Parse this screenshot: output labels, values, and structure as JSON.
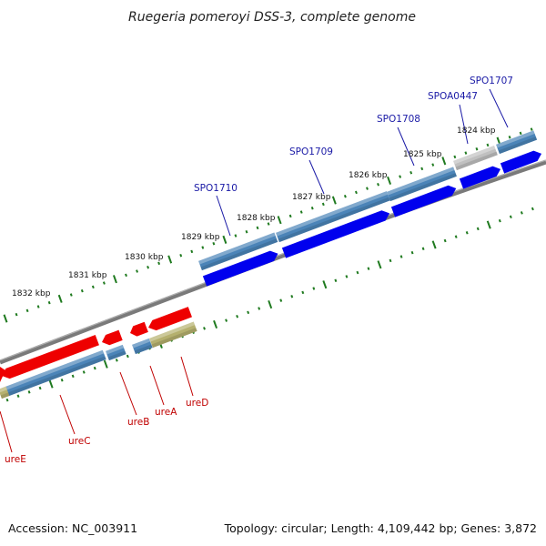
{
  "title": "Ruegeria pomeroyi DSS-3, complete genome",
  "footer": {
    "accession": "Accession: NC_003911",
    "topology": "Topology: circular; Length: 4,109,442 bp; Genes: 3,872"
  },
  "ruler_labels": [
    "1832 kbp",
    "1831 kbp",
    "1830 kbp",
    "1829 kbp",
    "1828 kbp",
    "1827 kbp",
    "1826 kbp",
    "1825 kbp",
    "1824 kbp"
  ],
  "gene_labels": {
    "forward": [
      "SPO1710",
      "SPO1709",
      "SPO1708",
      "SPOA0447",
      "SPO1707"
    ],
    "reverse": [
      "ureE",
      "ureC",
      "ureB",
      "ureA",
      "ureD"
    ]
  },
  "colors": {
    "forward_cds": "#0000ee",
    "reverse_cds": "#ee0000",
    "cog_blue": "#4b84b8",
    "cog_tan": "#b5b06e",
    "cog_gray": "#c0c0c0",
    "backbone": "#808080",
    "ticks": "#1f7a1f",
    "forward_label": "#1a1aa6",
    "reverse_label": "#c00000"
  }
}
